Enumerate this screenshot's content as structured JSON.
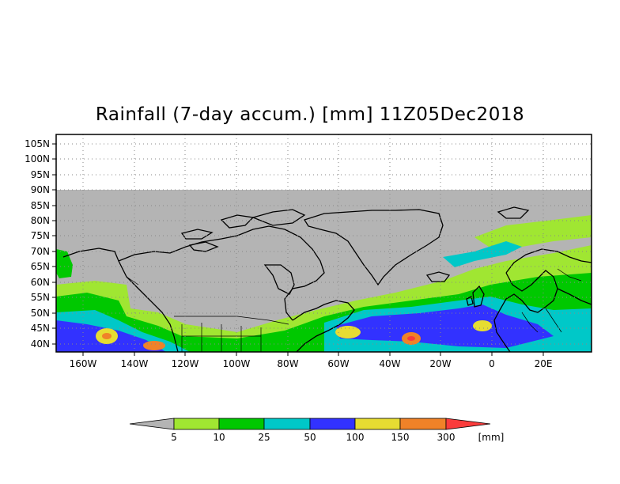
{
  "title": "Rainfall (7-day accum.) [mm] 11Z05Dec2018",
  "lat_labels": [
    "105N",
    "100N",
    "95N",
    "90N",
    "85N",
    "80N",
    "75N",
    "70N",
    "65N",
    "60N",
    "55N",
    "50N",
    "45N",
    "40N"
  ],
  "lon_labels": [
    "160W",
    "140W",
    "120W",
    "100W",
    "80W",
    "60W",
    "40W",
    "20W",
    "0",
    "20E"
  ],
  "colorbar": {
    "labels": [
      "5",
      "10",
      "25",
      "50",
      "100",
      "150",
      "300"
    ],
    "unit": "[mm]",
    "colors": [
      "#b4b4b4",
      "#a0e632",
      "#00c800",
      "#00c8c8",
      "#3232ff",
      "#e6dc32",
      "#f08228",
      "#fa3c3c"
    ]
  },
  "colors": {
    "no_data": "#b4b4b4",
    "coastline": "#000000"
  }
}
